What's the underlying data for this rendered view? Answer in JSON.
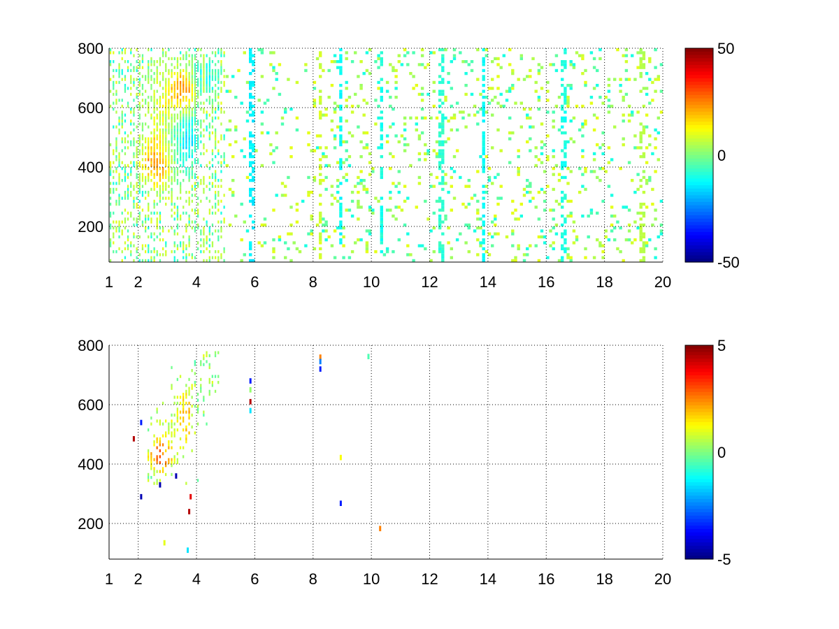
{
  "chart_data": [
    {
      "type": "heatmap",
      "x_ticks": [
        1,
        2,
        4,
        6,
        8,
        10,
        12,
        14,
        16,
        18,
        20
      ],
      "y_ticks": [
        200,
        400,
        600,
        800
      ],
      "xlim": [
        1,
        20
      ],
      "ylim": [
        80,
        800
      ],
      "grid": true,
      "grid_style": "dotted",
      "colormap": "jet",
      "colorbar": {
        "ticks": [
          50,
          0,
          -50
        ],
        "clim": [
          -50,
          50
        ]
      },
      "regions": [
        {
          "x": 2.6,
          "y": 420,
          "sx": 0.32,
          "sy": 55,
          "value": 25
        },
        {
          "x": 3.5,
          "y": 650,
          "sx": 0.28,
          "sy": 45,
          "value": 32
        },
        {
          "x": 3.55,
          "y": 500,
          "sx": 0.35,
          "sy": 70,
          "value": -22
        },
        {
          "x": 4.3,
          "y": 700,
          "sx": 0.3,
          "sy": 50,
          "value": -12
        },
        {
          "x": 3.0,
          "y": 560,
          "sx": 0.5,
          "sy": 120,
          "value": 10
        }
      ],
      "columns": [
        {
          "x": 4.25,
          "value": 6
        },
        {
          "x": 5.9,
          "value": -14
        },
        {
          "x": 8.25,
          "value": 8
        },
        {
          "x": 8.95,
          "value": -12
        },
        {
          "x": 10.35,
          "value": -10
        },
        {
          "x": 12.4,
          "value": -8
        },
        {
          "x": 13.85,
          "value": -12
        },
        {
          "x": 16.6,
          "value": -10
        },
        {
          "x": 19.3,
          "value": 5
        }
      ],
      "sparse_cells": {
        "dense_band": [
          1,
          5
        ],
        "mid_band": [
          5,
          8
        ],
        "sparse_band": [
          8,
          20
        ],
        "palette": [
          5,
          -5,
          10,
          -10,
          3,
          -3,
          8
        ]
      }
    },
    {
      "type": "heatmap",
      "x_ticks": [
        1,
        2,
        4,
        6,
        8,
        10,
        12,
        14,
        16,
        18,
        20
      ],
      "y_ticks": [
        200,
        400,
        600,
        800
      ],
      "xlim": [
        1,
        20
      ],
      "ylim": [
        80,
        800
      ],
      "grid": true,
      "grid_style": "dotted",
      "colormap": "jet",
      "colorbar": {
        "ticks": [
          5,
          0,
          -5
        ],
        "clim": [
          -5,
          5
        ]
      },
      "regions": [
        {
          "x": 2.75,
          "y": 430,
          "sx": 0.25,
          "sy": 35,
          "value": 3.5
        },
        {
          "x": 3.65,
          "y": 560,
          "sx": 0.15,
          "sy": 60,
          "value": 2.5
        },
        {
          "x": 3.5,
          "y": 660,
          "sx": 0.4,
          "sy": 60,
          "value": 0.3
        },
        {
          "x": 3.1,
          "y": 500,
          "sx": 0.4,
          "sy": 80,
          "value": 0.8
        }
      ],
      "cluster_x": [
        2.3,
        4.8
      ],
      "cluster_y": [
        330,
        780
      ],
      "isolated_points": [
        {
          "x": 5.85,
          "y": 680,
          "value": -3.5
        },
        {
          "x": 5.85,
          "y": 650,
          "value": 0.2
        },
        {
          "x": 5.85,
          "y": 610,
          "value": 4.5
        },
        {
          "x": 5.85,
          "y": 580,
          "value": -1.5
        },
        {
          "x": 8.25,
          "y": 760,
          "value": 2.5
        },
        {
          "x": 8.25,
          "y": 745,
          "value": -2.5
        },
        {
          "x": 8.25,
          "y": 720,
          "value": -3.5
        },
        {
          "x": 8.95,
          "y": 422,
          "value": 1.2
        },
        {
          "x": 8.95,
          "y": 268,
          "value": -3.5
        },
        {
          "x": 10.3,
          "y": 183,
          "value": 2.5
        },
        {
          "x": 9.9,
          "y": 762,
          "value": -0.5
        },
        {
          "x": 1.85,
          "y": 485,
          "value": 4.5
        },
        {
          "x": 2.1,
          "y": 290,
          "value": -4.5
        },
        {
          "x": 2.1,
          "y": 540,
          "value": -3.5
        },
        {
          "x": 3.75,
          "y": 240,
          "value": 4.5
        },
        {
          "x": 3.8,
          "y": 290,
          "value": 4
        },
        {
          "x": 3.7,
          "y": 110,
          "value": -1.5
        },
        {
          "x": 2.75,
          "y": 330,
          "value": -4.5
        },
        {
          "x": 3.3,
          "y": 360,
          "value": -4.5
        },
        {
          "x": 2.9,
          "y": 135,
          "value": 1
        }
      ]
    }
  ]
}
